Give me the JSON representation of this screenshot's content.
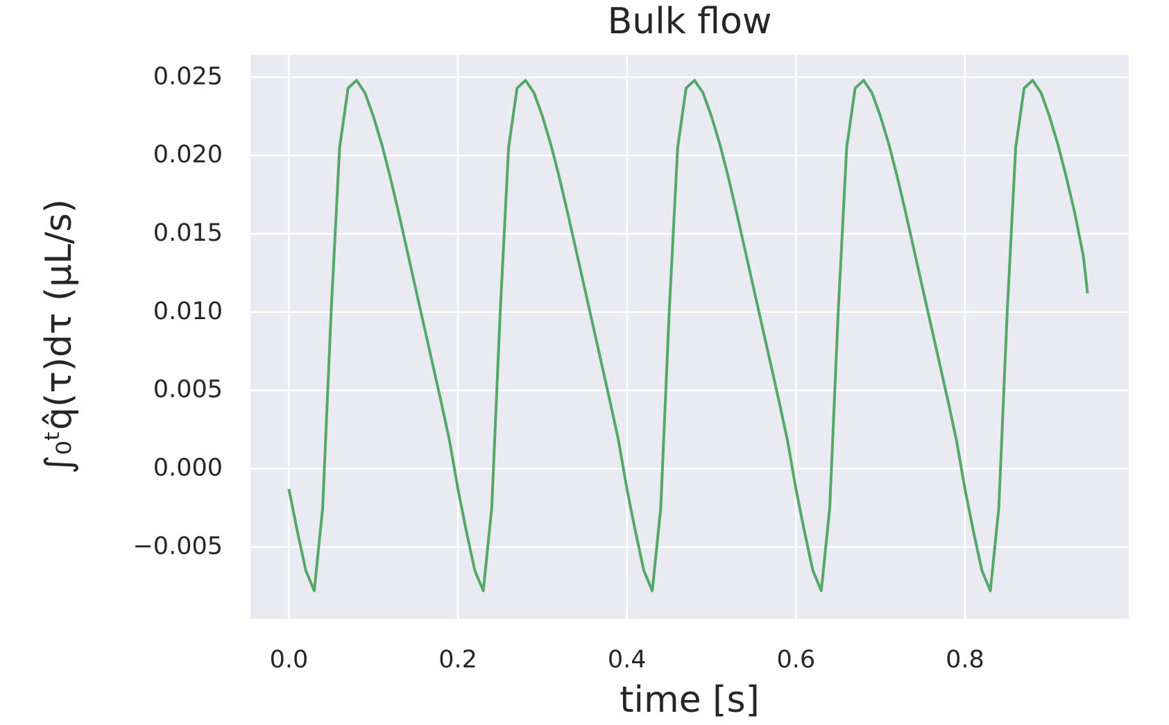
{
  "chart_data": {
    "type": "line",
    "title": "Bulk flow",
    "xlabel": "time [s]",
    "ylabel": "∫₀ᵗq̂(τ)dτ  (μL/s)",
    "x": [
      0,
      0.01,
      0.02,
      0.03,
      0.04,
      0.05,
      0.06,
      0.07,
      0.08,
      0.09,
      0.1,
      0.11,
      0.12,
      0.13,
      0.14,
      0.15,
      0.16,
      0.17,
      0.18,
      0.19,
      0.2,
      0.21,
      0.22,
      0.23,
      0.24,
      0.25,
      0.26,
      0.27,
      0.28,
      0.29,
      0.3,
      0.31,
      0.32,
      0.33,
      0.34,
      0.35,
      0.36,
      0.37,
      0.38,
      0.39,
      0.4,
      0.41,
      0.42,
      0.43,
      0.44,
      0.45,
      0.46,
      0.47,
      0.48,
      0.49,
      0.5,
      0.51,
      0.52,
      0.53,
      0.54,
      0.55,
      0.56,
      0.57,
      0.58,
      0.59,
      0.6,
      0.61,
      0.62,
      0.63,
      0.64,
      0.65,
      0.66,
      0.67,
      0.68,
      0.69,
      0.7,
      0.71,
      0.72,
      0.73,
      0.74,
      0.75,
      0.76,
      0.77,
      0.78,
      0.79,
      0.8,
      0.81,
      0.82,
      0.83,
      0.84,
      0.85,
      0.86,
      0.87,
      0.88,
      0.89,
      0.9,
      0.91,
      0.92,
      0.93,
      0.94,
      0.945
    ],
    "series": [
      {
        "color": "#55a868",
        "values": [
          -0.0013,
          -0.004,
          -0.0065,
          -0.0078,
          -0.0025,
          0.01,
          0.0205,
          0.0243,
          0.0248,
          0.024,
          0.0225,
          0.0207,
          0.0186,
          0.0163,
          0.0139,
          0.0115,
          0.0091,
          0.0067,
          0.0043,
          0.0018,
          -0.0013,
          -0.004,
          -0.0065,
          -0.0078,
          -0.0025,
          0.01,
          0.0205,
          0.0243,
          0.0248,
          0.024,
          0.0225,
          0.0207,
          0.0186,
          0.0163,
          0.0139,
          0.0115,
          0.0091,
          0.0067,
          0.0043,
          0.0018,
          -0.0013,
          -0.004,
          -0.0065,
          -0.0078,
          -0.0025,
          0.01,
          0.0205,
          0.0243,
          0.0248,
          0.024,
          0.0225,
          0.0207,
          0.0186,
          0.0163,
          0.0139,
          0.0115,
          0.0091,
          0.0067,
          0.0043,
          0.0018,
          -0.0013,
          -0.004,
          -0.0065,
          -0.0078,
          -0.0025,
          0.01,
          0.0205,
          0.0243,
          0.0248,
          0.024,
          0.0225,
          0.0207,
          0.0186,
          0.0163,
          0.0139,
          0.0115,
          0.0091,
          0.0067,
          0.0043,
          0.0018,
          -0.0013,
          -0.004,
          -0.0065,
          -0.0078,
          -0.0025,
          0.01,
          0.0205,
          0.0243,
          0.0248,
          0.024,
          0.0225,
          0.0207,
          0.0186,
          0.0163,
          0.0136,
          0.0112
        ]
      }
    ],
    "xlim": [
      -0.0455,
      0.9938
    ],
    "ylim": [
      -0.00959,
      0.02643
    ],
    "xticks": [
      {
        "value": 0,
        "label": "0.0"
      },
      0.2,
      0.4,
      0.6,
      0.8
    ],
    "yticks": [
      {
        "value": -0.005,
        "label": "−0.005"
      },
      {
        "value": 0,
        "label": "0.000"
      },
      0.005,
      {
        "value": 0.01,
        "label": "0.010"
      },
      0.015,
      {
        "value": 0.02,
        "label": "0.020"
      },
      0.025
    ],
    "grid": true
  }
}
